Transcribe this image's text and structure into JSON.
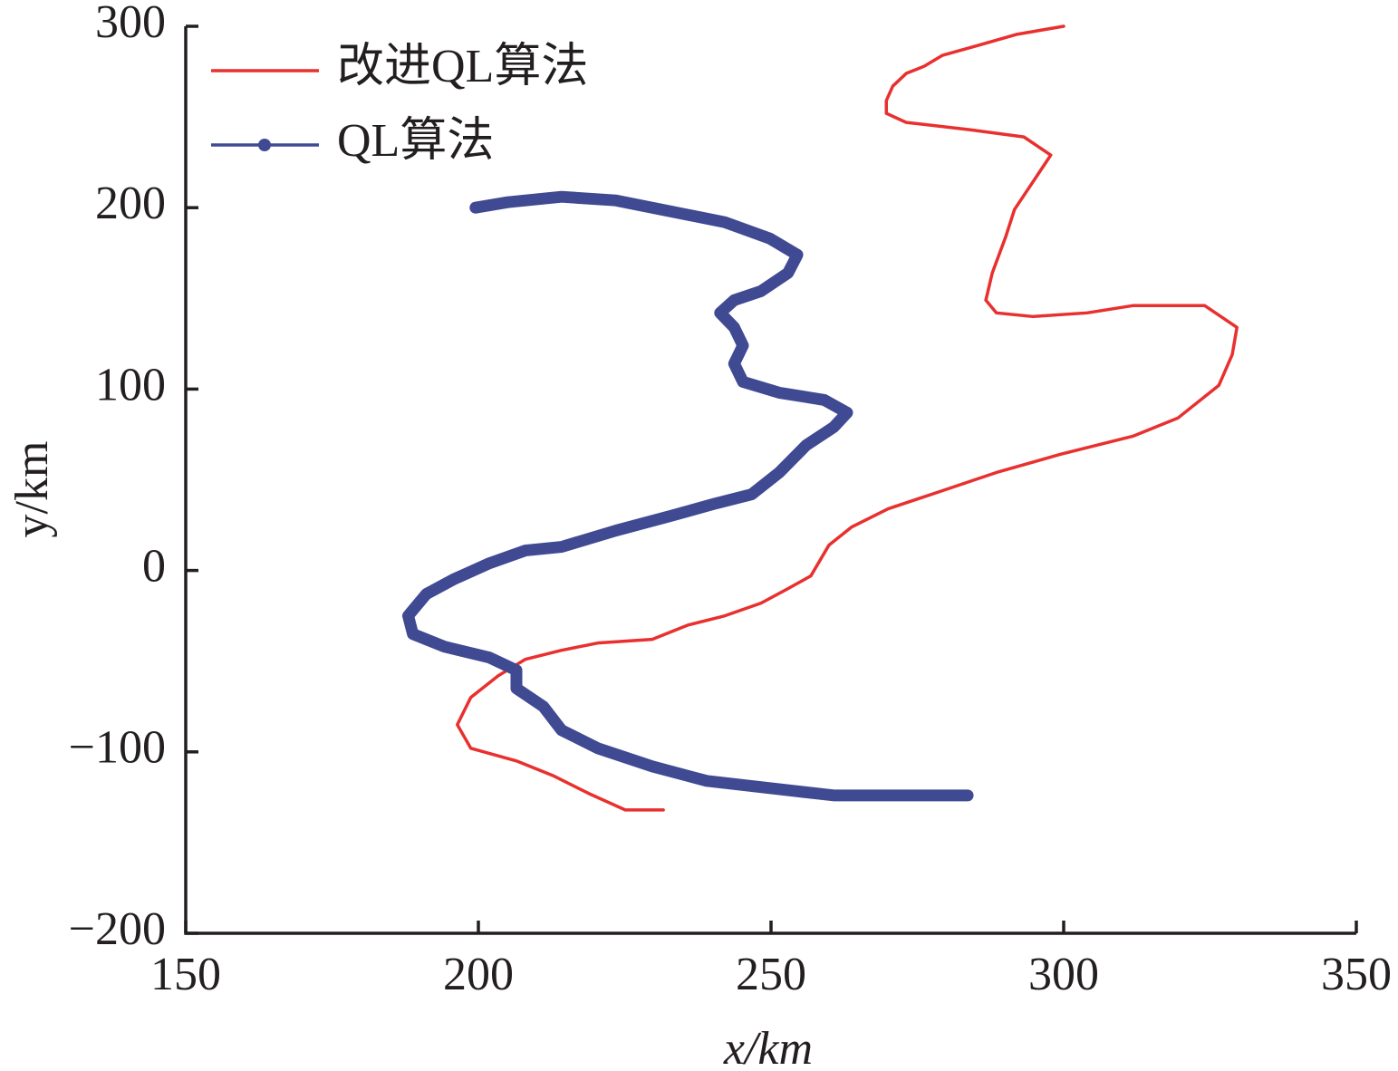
{
  "chart_data": {
    "type": "line",
    "xlabel": "x/km",
    "ylabel": "y/km",
    "xlim": [
      150,
      350
    ],
    "xticks": [
      150,
      200,
      250,
      300,
      350
    ],
    "ylim": [
      -200,
      300
    ],
    "yticks": [
      {
        "value": -200,
        "label": "−200"
      },
      {
        "value": -100,
        "label": "−100"
      },
      0,
      100,
      200,
      300
    ],
    "legend": "top-left",
    "series": [
      {
        "name": "改进QL算法",
        "color": "#e8302f",
        "marker": false,
        "x": [
          300,
          291.9,
          285.4,
          279.3,
          276.2,
          273.1,
          270.8,
          269.7,
          269.7,
          273.1,
          283.9,
          293.2,
          297.8,
          294.7,
          291.6,
          290.1,
          287.8,
          286.7,
          288.5,
          294.7,
          304.0,
          311.8,
          324.1,
          329.6,
          328.8,
          326.5,
          319.5,
          311.8,
          299.4,
          288.5,
          279.3,
          270.0,
          263.8,
          259.9,
          256.8,
          252.9,
          248.3,
          242.1,
          235.9,
          229.7,
          220.4,
          214.2,
          208.0,
          203.4,
          198.7,
          196.4,
          198.7,
          206.5,
          212.7,
          218.9,
          225.1,
          231.6
        ],
        "values": [
          300,
          295.5,
          289.5,
          284,
          278,
          274,
          267,
          259,
          252,
          247,
          243,
          239,
          229,
          214,
          199,
          184,
          164,
          149,
          142,
          140,
          142,
          146,
          146,
          134,
          119,
          102,
          84,
          74,
          64,
          54,
          44,
          34,
          24,
          14,
          -3,
          -10,
          -18,
          -25,
          -30,
          -38,
          -40,
          -44,
          -49,
          -58,
          -70,
          -85,
          -98,
          -105,
          -113,
          -123,
          -132,
          -132
        ]
      },
      {
        "name": "QL算法",
        "color": "#3f4a92",
        "marker": true,
        "x": [
          199.5,
          205.0,
          214.2,
          223.5,
          232.8,
          242.1,
          249.8,
          254.5,
          252.9,
          248.3,
          243.7,
          241.3,
          243.7,
          245.2,
          243.7,
          245.2,
          251.4,
          259.1,
          263.0,
          260.7,
          256.0,
          251.4,
          246.7,
          240.6,
          232.8,
          223.5,
          214.2,
          208.0,
          201.9,
          195.7,
          191.1,
          188.0,
          188.8,
          194.2,
          201.9,
          206.5,
          206.5,
          211.1,
          214.2,
          220.4,
          229.7,
          239.0,
          249.8,
          260.7,
          273.1,
          283.6
        ],
        "values": [
          200,
          203,
          206,
          204,
          198,
          192,
          183,
          174,
          164,
          154,
          149,
          142,
          134,
          124,
          114,
          104,
          98,
          94,
          87,
          79,
          69,
          54,
          42,
          37,
          30,
          22,
          13,
          11,
          4,
          -5,
          -13,
          -25,
          -35,
          -42,
          -48,
          -55,
          -65,
          -75,
          -88,
          -98,
          -108,
          -116,
          -120,
          -124,
          -124,
          -124
        ]
      }
    ]
  }
}
